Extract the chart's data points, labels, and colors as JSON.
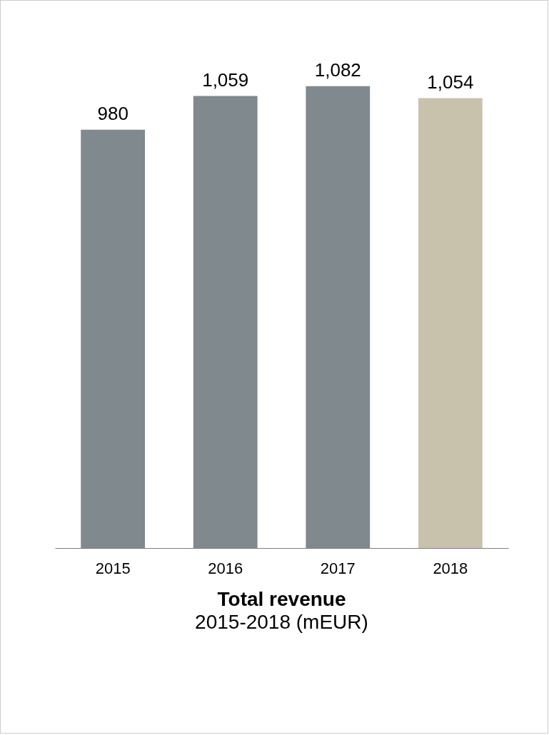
{
  "chart_data": {
    "type": "bar",
    "title": "Total revenue",
    "subtitle": "2015-2018 (mEUR)",
    "categories": [
      "2015",
      "2016",
      "2017",
      "2018"
    ],
    "values": [
      980,
      1059,
      1082,
      1054
    ],
    "colors": [
      "#7f898e",
      "#7f898e",
      "#7f898e",
      "#c8c2ad"
    ],
    "value_labels": [
      "980",
      "1,059",
      "1,082",
      "1,054"
    ],
    "grid": false
  }
}
